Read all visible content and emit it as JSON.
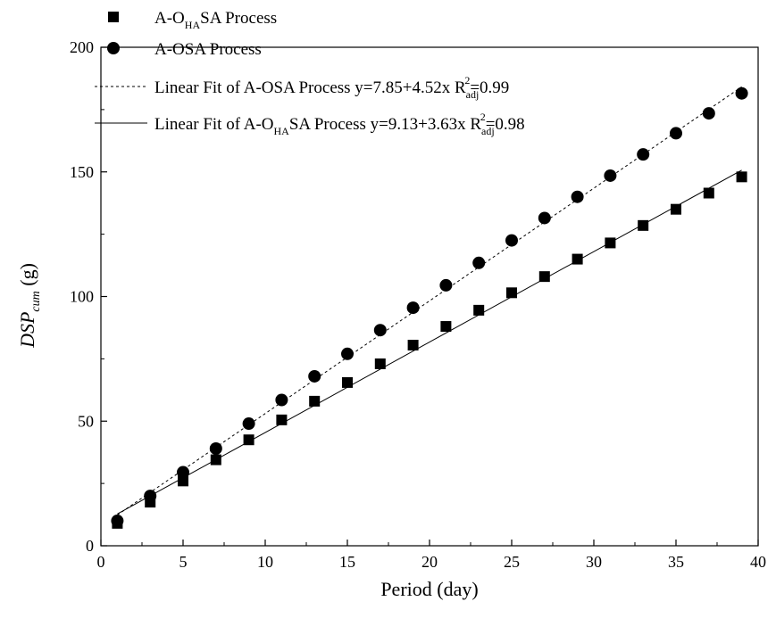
{
  "chart_data": {
    "type": "scatter",
    "xlabel": "Period (day)",
    "ylabel": {
      "main": "DSP",
      "sub": "cum",
      "unit": " (g)"
    },
    "xlim": [
      0,
      40
    ],
    "ylim": [
      0,
      200
    ],
    "xticks": [
      0,
      5,
      10,
      15,
      20,
      25,
      30,
      35,
      40
    ],
    "yticks": [
      0,
      50,
      100,
      150,
      200
    ],
    "grid": false,
    "legend_position": "top-left",
    "x": [
      1,
      3,
      5,
      7,
      9,
      11,
      13,
      15,
      17,
      19,
      21,
      23,
      25,
      27,
      29,
      31,
      33,
      35,
      37,
      39
    ],
    "series": [
      {
        "name": {
          "a": "A-O",
          "sub": "HA",
          "b": "SA Process"
        },
        "marker": "square",
        "values": [
          9,
          17.5,
          26,
          34.5,
          42.5,
          50.5,
          58,
          65.5,
          73,
          80.5,
          88,
          94.5,
          101.5,
          108,
          115,
          121.5,
          128.5,
          135,
          141.5,
          148
        ]
      },
      {
        "name": {
          "a": "A-OSA Process"
        },
        "marker": "circle",
        "values": [
          10,
          20,
          29.5,
          39,
          49,
          58.5,
          68,
          77,
          86.5,
          95.5,
          104.5,
          113.5,
          122.5,
          131.5,
          140,
          148.5,
          157,
          165.5,
          173.5,
          181.5
        ]
      }
    ],
    "fits": [
      {
        "style": "dashed",
        "intercept": 7.85,
        "slope": 4.52,
        "label": {
          "a": "Linear Fit of A-OSA Process  y=7.85+4.52x  R",
          "sub": "adj",
          "sup": "2",
          "b": "=0.99"
        }
      },
      {
        "style": "solid",
        "intercept": 9.13,
        "slope": 3.63,
        "label": {
          "a": "Linear Fit of A-O",
          "sub1": "HA",
          "b": "SA Process  y=9.13+3.63x  R",
          "sub": "adj",
          "sup": "2",
          "c": "=0.98"
        }
      }
    ]
  }
}
